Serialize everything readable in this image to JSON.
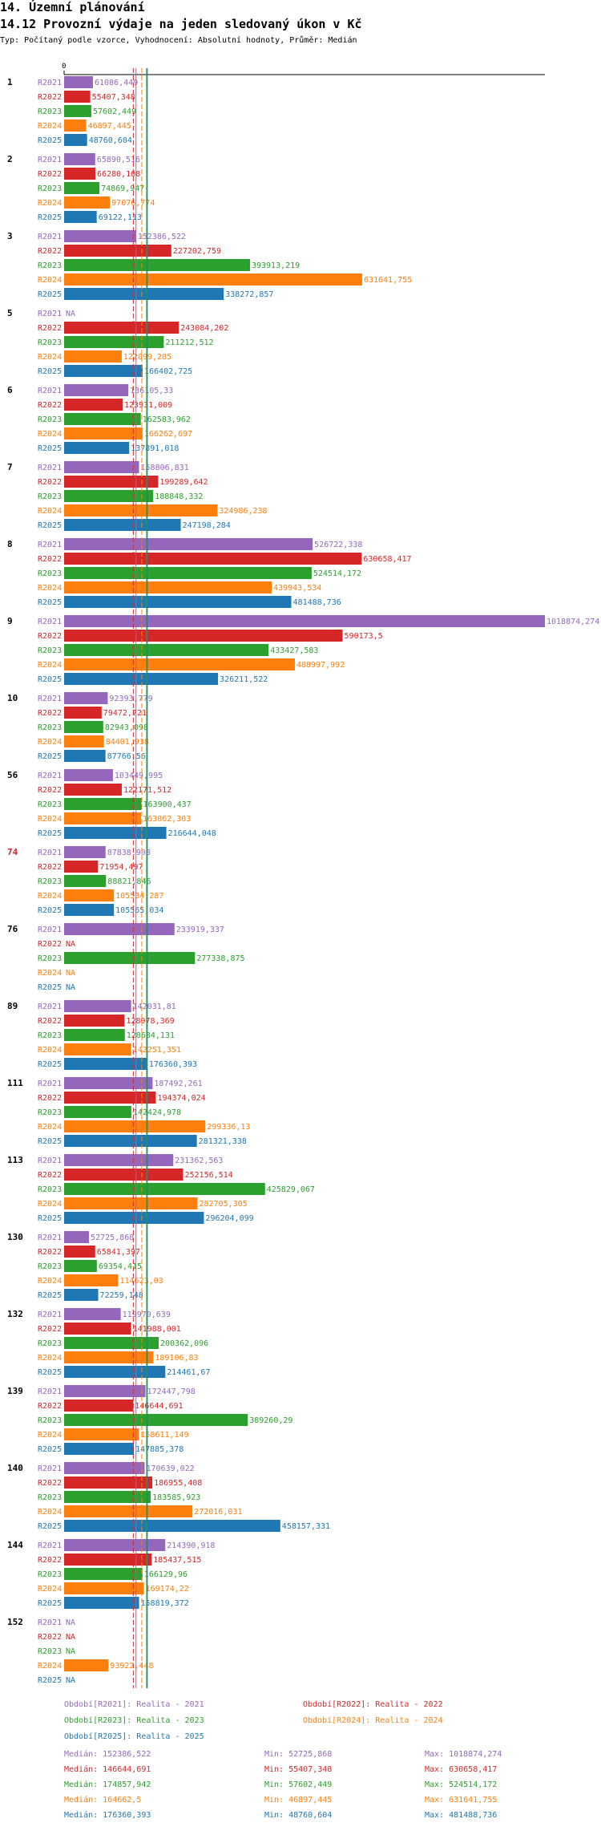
{
  "header": {
    "title": "14. Územní plánování",
    "subtitle": "14.12 Provozní výdaje na jeden sledovaný úkon v Kč",
    "meta": "Typ: Počítaný podle vzorce, Vyhodnocení: Absolutní hodnoty, Průměr: Medián"
  },
  "chart_data": {
    "type": "bar",
    "orientation": "horizontal",
    "title": "14.12 Provozní výdaje na jeden sledovaný úkon v Kč",
    "x_tick_labels": [
      "0"
    ],
    "xlim": [
      0,
      1018874.274
    ],
    "series_names": [
      "R2021",
      "R2022",
      "R2023",
      "R2024",
      "R2025"
    ],
    "colors": {
      "R2021": "#9467bd",
      "R2022": "#d62728",
      "R2023": "#2ca02c",
      "R2024": "#ff7f0e",
      "R2025": "#1f77b4",
      "highlight_category": "#d62728"
    },
    "highlight_category": "74",
    "categories": [
      {
        "label": "1",
        "values": [
          61086.449,
          55407.348,
          57602.449,
          46897.445,
          48760.604
        ],
        "texts": [
          "61086,449",
          "55407,348",
          "57602,449",
          "46897,445",
          "48760,604"
        ]
      },
      {
        "label": "2",
        "values": [
          65890.516,
          66280.108,
          74869.947,
          97076.774,
          69122.113
        ],
        "texts": [
          "65890,516",
          "66280,108",
          "74869,947",
          "97076,774",
          "69122,113"
        ]
      },
      {
        "label": "3",
        "values": [
          152386.522,
          227202.759,
          393913.219,
          631641.755,
          338272.857
        ],
        "texts": [
          "152386,522",
          "227202,759",
          "393913,219",
          "631641,755",
          "338272,857"
        ]
      },
      {
        "label": "5",
        "values": [
          null,
          243084.202,
          211212.512,
          122099.285,
          166402.725
        ],
        "texts": [
          "NA",
          "243084,202",
          "211212,512",
          "122099,285",
          "166402,725"
        ]
      },
      {
        "label": "6",
        "values": [
          136105.33,
          123931.009,
          162583.962,
          166262.697,
          137891.018
        ],
        "texts": [
          "136105,33",
          "123931,009",
          "162583,962",
          "166262,697",
          "137891,018"
        ]
      },
      {
        "label": "7",
        "values": [
          158806.831,
          199289.642,
          188848.332,
          324986.238,
          247198.284
        ],
        "texts": [
          "158806,831",
          "199289,642",
          "188848,332",
          "324986,238",
          "247198,284"
        ]
      },
      {
        "label": "8",
        "values": [
          526722.338,
          630658.417,
          524514.172,
          439943.534,
          481488.736
        ],
        "texts": [
          "526722,338",
          "630658,417",
          "524514,172",
          "439943,534",
          "481488,736"
        ]
      },
      {
        "label": "9",
        "values": [
          1018874.274,
          590173.5,
          433427.583,
          488997.992,
          326211.522
        ],
        "texts": [
          "1018874,274",
          "590173,5",
          "433427,583",
          "488997,992",
          "326211,522"
        ]
      },
      {
        "label": "10",
        "values": [
          92393.779,
          79472.721,
          82943.098,
          84401.938,
          87766.56
        ],
        "texts": [
          "92393,779",
          "79472,721",
          "82943,098",
          "84401,938",
          "87766,56"
        ]
      },
      {
        "label": "56",
        "values": [
          103449.995,
          122171.512,
          163900.437,
          163062.303,
          216644.048
        ],
        "texts": [
          "103449,995",
          "122171,512",
          "163900,437",
          "163062,303",
          "216644,048"
        ]
      },
      {
        "label": "74",
        "values": [
          87838.908,
          71954.497,
          88821.846,
          105534.287,
          105565.034
        ],
        "texts": [
          "87838,908",
          "71954,497",
          "88821,846",
          "105534,287",
          "105565,034"
        ]
      },
      {
        "label": "76",
        "values": [
          233919.337,
          null,
          277338.875,
          null,
          null
        ],
        "texts": [
          "233919,337",
          "NA",
          "277338,875",
          "NA",
          "NA"
        ]
      },
      {
        "label": "89",
        "values": [
          142031.81,
          128078.369,
          128684.131,
          142251.351,
          176360.393
        ],
        "texts": [
          "142031,81",
          "128078,369",
          "128684,131",
          "142251,351",
          "176360,393"
        ]
      },
      {
        "label": "111",
        "values": [
          187492.261,
          194374.024,
          142424.978,
          299336.13,
          281321.338
        ],
        "texts": [
          "187492,261",
          "194374,024",
          "142424,978",
          "299336,13",
          "281321,338"
        ]
      },
      {
        "label": "113",
        "values": [
          231362.563,
          252156.514,
          425829.067,
          282705.305,
          296204.099
        ],
        "texts": [
          "231362,563",
          "252156,514",
          "425829,067",
          "282705,305",
          "296204,099"
        ]
      },
      {
        "label": "130",
        "values": [
          52725.868,
          65841.397,
          69354.415,
          114623.03,
          72259.148
        ],
        "texts": [
          "52725,868",
          "65841,397",
          "69354,415",
          "114623,03",
          "72259,148"
        ]
      },
      {
        "label": "132",
        "values": [
          119970.639,
          141988.001,
          200362.096,
          189106.83,
          214461.67
        ],
        "texts": [
          "119970,639",
          "141988,001",
          "200362,096",
          "189106,83",
          "214461,67"
        ]
      },
      {
        "label": "139",
        "values": [
          172447.798,
          146644.691,
          389260.29,
          158611.149,
          147885.378
        ],
        "texts": [
          "172447,798",
          "146644,691",
          "389260,29",
          "158611,149",
          "147885,378"
        ]
      },
      {
        "label": "140",
        "values": [
          170639.022,
          186955.408,
          183585.923,
          272016.031,
          458157.331
        ],
        "texts": [
          "170639,022",
          "186955,408",
          "183585,923",
          "272016,031",
          "458157,331"
        ]
      },
      {
        "label": "144",
        "values": [
          214390.918,
          185437.515,
          166129.96,
          169174.22,
          158819.372
        ],
        "texts": [
          "214390,918",
          "185437,515",
          "166129,96",
          "169174,22",
          "158819,372"
        ]
      },
      {
        "label": "152",
        "values": [
          null,
          null,
          null,
          93922.448,
          null
        ],
        "texts": [
          "NA",
          "NA",
          "NA",
          "93922,448",
          "NA"
        ]
      }
    ],
    "median_lines": [
      152386.522,
      146644.691,
      174857.942,
      164662.5,
      176360.393
    ],
    "legend": [
      {
        "text": "Období[R2021]: Realita - 2021",
        "series": "R2021"
      },
      {
        "text": "Období[R2022]: Realita - 2022",
        "series": "R2022"
      },
      {
        "text": "Období[R2023]: Realita - 2023",
        "series": "R2023"
      },
      {
        "text": "Období[R2024]: Realita - 2024",
        "series": "R2024"
      },
      {
        "text": "Období[R2025]: Realita - 2025",
        "series": "R2025"
      }
    ],
    "stats": [
      {
        "series": "R2021",
        "median": "Medián: 152386,522",
        "min": "Min: 52725,868",
        "max": "Max: 1018874,274"
      },
      {
        "series": "R2022",
        "median": "Medián: 146644,691",
        "min": "Min: 55407,348",
        "max": "Max: 630658,417"
      },
      {
        "series": "R2023",
        "median": "Medián: 174857,942",
        "min": "Min: 57602,449",
        "max": "Max: 524514,172"
      },
      {
        "series": "R2024",
        "median": "Medián: 164662,5",
        "min": "Min: 46897,445",
        "max": "Max: 631641,755"
      },
      {
        "series": "R2025",
        "median": "Medián: 176360,393",
        "min": "Min: 48760,604",
        "max": "Max: 481488,736"
      }
    ]
  }
}
